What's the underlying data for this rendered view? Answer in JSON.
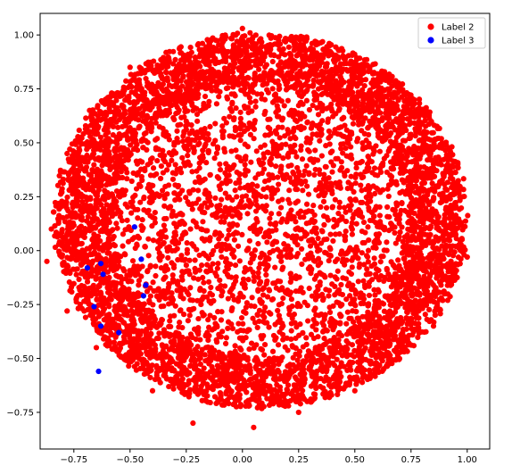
{
  "chart_data": {
    "type": "scatter",
    "title": "",
    "xlabel": "",
    "ylabel": "",
    "xlim": [
      -0.9,
      1.1
    ],
    "ylim": [
      -0.92,
      1.1
    ],
    "grid": false,
    "legend_position": "top-right",
    "x_ticks": [
      {
        "value": -0.75,
        "label": "−0.75"
      },
      {
        "value": -0.5,
        "label": "−0.50"
      },
      {
        "value": -0.25,
        "label": "−0.25"
      },
      {
        "value": 0.0,
        "label": "0.00"
      },
      {
        "value": 0.25,
        "label": "0.25"
      },
      {
        "value": 0.5,
        "label": "0.50"
      },
      {
        "value": 0.75,
        "label": "0.75"
      },
      {
        "value": 1.0,
        "label": "1.00"
      }
    ],
    "y_ticks": [
      {
        "value": -0.75,
        "label": "−0.75"
      },
      {
        "value": -0.5,
        "label": "−0.50"
      },
      {
        "value": -0.25,
        "label": "−0.25"
      },
      {
        "value": 0.0,
        "label": "0.00"
      },
      {
        "value": 0.25,
        "label": "0.25"
      },
      {
        "value": 0.5,
        "label": "0.50"
      },
      {
        "value": 0.75,
        "label": "0.75"
      },
      {
        "value": 1.0,
        "label": "1.00"
      }
    ],
    "series": [
      {
        "name": "Label 2",
        "color": "#ff0000",
        "distribution": {
          "shape": "dense sphere-projection cloud",
          "center": [
            0.08,
            0.14
          ],
          "radius_x": 0.93,
          "radius_y": 0.9,
          "approx_count": 7000
        },
        "points": [
          [
            0.0,
            1.03
          ],
          [
            0.27,
            0.98
          ],
          [
            -0.14,
            0.92
          ],
          [
            -0.5,
            0.85
          ],
          [
            0.58,
            0.82
          ],
          [
            -0.68,
            0.65
          ],
          [
            0.75,
            0.62
          ],
          [
            -0.78,
            0.45
          ],
          [
            0.85,
            0.4
          ],
          [
            -0.85,
            0.1
          ],
          [
            0.95,
            0.1
          ],
          [
            -0.87,
            -0.05
          ],
          [
            1.0,
            -0.03
          ],
          [
            -0.78,
            -0.28
          ],
          [
            0.9,
            -0.2
          ],
          [
            0.85,
            -0.35
          ],
          [
            -0.65,
            -0.45
          ],
          [
            0.6,
            -0.55
          ],
          [
            -0.4,
            -0.65
          ],
          [
            0.5,
            -0.65
          ],
          [
            -0.22,
            -0.8
          ],
          [
            0.05,
            -0.82
          ],
          [
            0.25,
            -0.75
          ],
          [
            -0.25,
            0.6
          ],
          [
            0.3,
            0.5
          ],
          [
            0.0,
            0.25
          ],
          [
            -0.3,
            0.0
          ],
          [
            0.2,
            -0.2
          ],
          [
            0.1,
            0.7
          ],
          [
            0.4,
            0.2
          ]
        ]
      },
      {
        "name": "Label 3",
        "color": "#0000ff",
        "points": [
          [
            -0.48,
            0.11
          ],
          [
            -0.69,
            -0.08
          ],
          [
            -0.63,
            -0.06
          ],
          [
            -0.62,
            -0.11
          ],
          [
            -0.45,
            -0.04
          ],
          [
            -0.43,
            -0.16
          ],
          [
            -0.44,
            -0.21
          ],
          [
            -0.66,
            -0.26
          ],
          [
            -0.63,
            -0.35
          ],
          [
            -0.55,
            -0.38
          ],
          [
            -0.64,
            -0.56
          ]
        ]
      }
    ]
  }
}
